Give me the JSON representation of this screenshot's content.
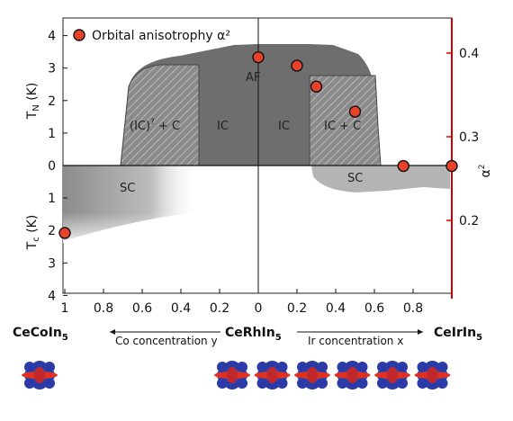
{
  "chart_data": {
    "type": "scatter",
    "legend": {
      "entry": "Orbital anisotrophy α²",
      "placement": "top-left"
    },
    "axes": {
      "left_top_label": "T_N (K)",
      "left_bottom_label": "T_c (K)",
      "right_label": "α²",
      "left_top_ticks": [
        "4",
        "3",
        "2",
        "1",
        "0"
      ],
      "left_bottom_ticks": [
        "1",
        "2",
        "3",
        "4"
      ],
      "right_ticks": [
        "0.4",
        "0.3",
        "0.2"
      ],
      "bottom_left_ticks": [
        "1",
        "0.8",
        "0.6",
        "0.4",
        "0.2",
        "0"
      ],
      "bottom_right_ticks": [
        "0.2",
        "0.4",
        "0.6",
        "0.8"
      ],
      "x_range": [
        -1,
        1
      ],
      "T_range": [
        -4,
        4
      ],
      "alpha2_range": [
        0.2,
        0.43
      ]
    },
    "compounds": {
      "left": "CeCoIn",
      "center": "CeRhIn",
      "right": "CeIrIn",
      "subscript": "5"
    },
    "axis_titles": {
      "left": "Co concentration y",
      "right": "Ir concentration x"
    },
    "regions": {
      "af": "AF",
      "ic_c_left_main": "(IC)",
      "ic_c_left_sup": "?",
      "ic_c_left_tail": " + C",
      "ic_left": "IC",
      "ic_right": "IC",
      "ic_c_right": "IC + C",
      "sc_left": "SC",
      "sc_right": "SC"
    },
    "series": [
      {
        "name": "Orbital anisotrophy α²",
        "points": [
          {
            "x": -1.0,
            "alpha2": 0.185
          },
          {
            "x": 0.0,
            "alpha2": 0.395
          },
          {
            "x": 0.2,
            "alpha2": 0.385
          },
          {
            "x": 0.3,
            "alpha2": 0.36
          },
          {
            "x": 0.5,
            "alpha2": 0.33
          },
          {
            "x": 0.75,
            "alpha2": 0.265
          },
          {
            "x": 1.0,
            "alpha2": 0.265
          }
        ]
      }
    ],
    "orbital_shapes": [
      {
        "x": -0.9
      },
      {
        "x": 0.15
      },
      {
        "x": 0.35
      },
      {
        "x": 0.55
      },
      {
        "x": 0.75
      },
      {
        "x": 0.95
      },
      {
        "x": 1.15
      }
    ],
    "colors": {
      "af_phase": "#6e6e6e",
      "sc_phase": "#b0b0b0",
      "marker_fill": "#e8432a",
      "right_axis": "#cc0000",
      "orbital_blue": "#2a3aa6",
      "orbital_red": "#e03020"
    }
  }
}
